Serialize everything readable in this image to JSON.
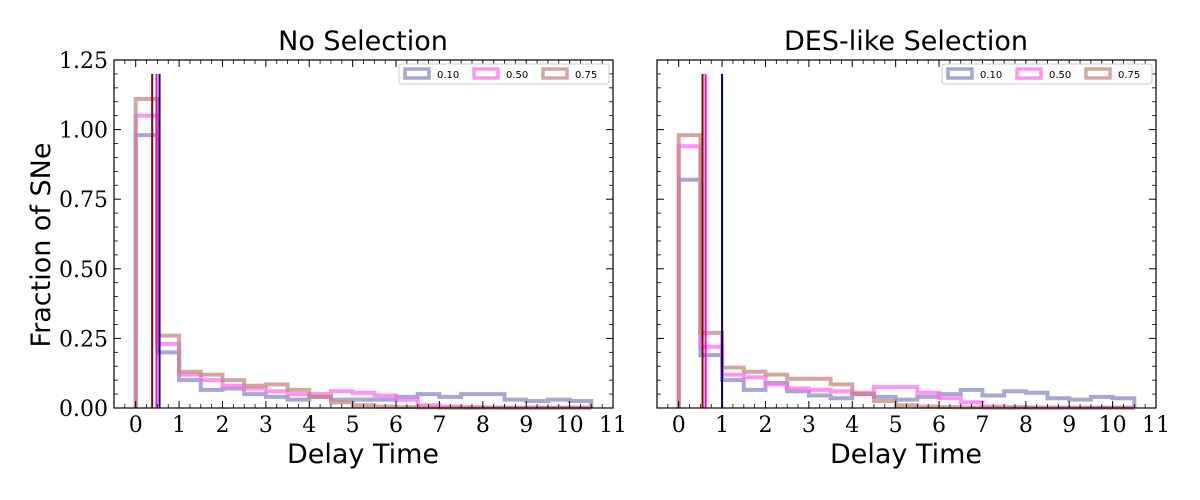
{
  "chart_data": [
    {
      "type": "step-histogram",
      "title": "No Selection",
      "xlabel": "Delay Time",
      "ylabel": "Fraction of SNe",
      "xlim": [
        -0.5,
        11
      ],
      "ylim": [
        0,
        1.25
      ],
      "xticks": [
        "0",
        "1",
        "2",
        "3",
        "4",
        "5",
        "6",
        "7",
        "8",
        "9",
        "10",
        "11"
      ],
      "yticks": [
        "0.00",
        "0.25",
        "0.50",
        "0.75",
        "1.00",
        "1.25"
      ],
      "legend_position": "upper-right",
      "bin_edges": [
        0,
        0.5,
        1,
        1.5,
        2,
        2.5,
        3,
        3.5,
        4,
        4.5,
        5,
        5.5,
        6,
        6.5,
        7,
        7.5,
        8,
        8.5,
        9,
        9.5,
        10,
        10.5
      ],
      "series": [
        {
          "name": "0.10",
          "color": "#8a8ac4",
          "values": [
            0.98,
            0.2,
            0.1,
            0.065,
            0.07,
            0.05,
            0.04,
            0.03,
            0.04,
            0.03,
            0.03,
            0.03,
            0.04,
            0.05,
            0.04,
            0.05,
            0.05,
            0.03,
            0.025,
            0.03,
            0.025
          ],
          "median": 0.55,
          "median_color": "#00008b"
        },
        {
          "name": "0.50",
          "color": "#ff6ef2",
          "values": [
            1.05,
            0.23,
            0.12,
            0.1,
            0.08,
            0.07,
            0.06,
            0.05,
            0.05,
            0.06,
            0.055,
            0.045,
            0.03,
            0.01,
            0.005,
            0.003,
            0.002,
            0.001,
            0.001,
            0.001,
            0.001
          ],
          "median": 0.48,
          "median_color": "#ff00cc"
        },
        {
          "name": "0.75",
          "color": "#c48a80",
          "values": [
            1.11,
            0.26,
            0.13,
            0.12,
            0.1,
            0.08,
            0.085,
            0.065,
            0.04,
            0.02,
            0.01,
            0.005,
            0.003,
            0.002,
            0.001,
            0.001,
            0.001,
            0.001,
            0.001,
            0.001,
            0.001
          ],
          "median": 0.38,
          "median_color": "#8b0000"
        }
      ]
    },
    {
      "type": "step-histogram",
      "title": "DES-like Selection",
      "xlabel": "Delay Time",
      "ylabel": "",
      "xlim": [
        -0.5,
        11
      ],
      "ylim": [
        0,
        1.25
      ],
      "xticks": [
        "0",
        "1",
        "2",
        "3",
        "4",
        "5",
        "6",
        "7",
        "8",
        "9",
        "10",
        "11"
      ],
      "yticks": [
        "0.00",
        "0.25",
        "0.50",
        "0.75",
        "1.00",
        "1.25"
      ],
      "legend_position": "upper-right",
      "bin_edges": [
        0,
        0.5,
        1,
        1.5,
        2,
        2.5,
        3,
        3.5,
        4,
        4.5,
        5,
        5.5,
        6,
        6.5,
        7,
        7.5,
        8,
        8.5,
        9,
        9.5,
        10,
        10.5
      ],
      "series": [
        {
          "name": "0.10",
          "color": "#8a8ac4",
          "values": [
            0.82,
            0.19,
            0.1,
            0.065,
            0.09,
            0.06,
            0.045,
            0.035,
            0.05,
            0.04,
            0.03,
            0.04,
            0.05,
            0.065,
            0.045,
            0.06,
            0.055,
            0.035,
            0.03,
            0.04,
            0.035
          ],
          "median": 1.0,
          "median_color": "#00008b"
        },
        {
          "name": "0.50",
          "color": "#ff6ef2",
          "values": [
            0.94,
            0.22,
            0.12,
            0.11,
            0.085,
            0.07,
            0.065,
            0.06,
            0.055,
            0.075,
            0.075,
            0.055,
            0.035,
            0.02,
            0.005,
            0.003,
            0.002,
            0.001,
            0.001,
            0.001,
            0.001
          ],
          "median": 0.62,
          "median_color": "#ff00cc"
        },
        {
          "name": "0.75",
          "color": "#c48a80",
          "values": [
            0.98,
            0.27,
            0.145,
            0.13,
            0.12,
            0.105,
            0.105,
            0.085,
            0.05,
            0.025,
            0.01,
            0.005,
            0.003,
            0.002,
            0.001,
            0.001,
            0.001,
            0.001,
            0.001,
            0.001,
            0.001
          ],
          "median": 0.55,
          "median_color": "#8b0000"
        }
      ]
    }
  ]
}
